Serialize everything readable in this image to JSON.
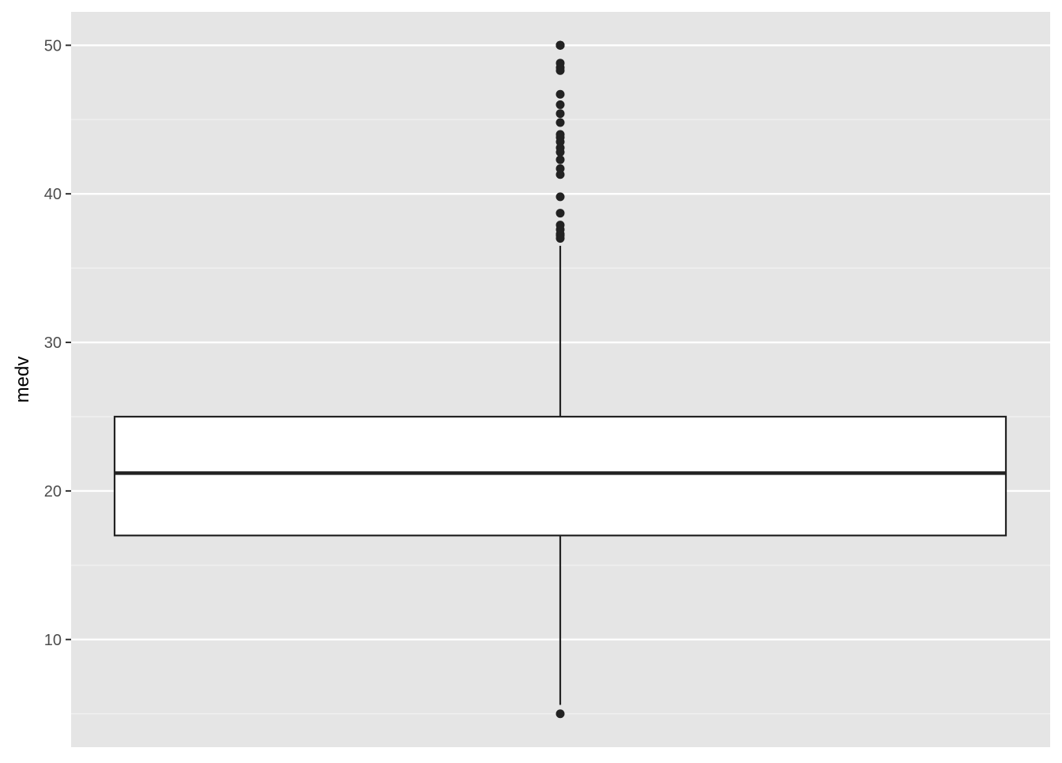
{
  "chart_data": {
    "type": "boxplot",
    "title": "",
    "xlabel": "",
    "ylabel": "medv",
    "ylim": [
      2.75,
      52.25
    ],
    "yticks": [
      10,
      20,
      30,
      40,
      50
    ],
    "yticklabels": [
      "10",
      "20",
      "30",
      "40",
      "50"
    ],
    "minor_yticks": [
      5,
      15,
      25,
      35,
      45
    ],
    "grid": true,
    "legend": "none",
    "box": {
      "q1": 17.0,
      "median": 21.2,
      "q3": 25.0,
      "whisker_low": 5.6,
      "whisker_high": 36.5
    },
    "outliers": [
      50,
      50,
      50,
      50,
      50,
      48.8,
      48.5,
      48.3,
      46.7,
      46.0,
      45.4,
      44.8,
      44.0,
      43.8,
      43.5,
      43.1,
      42.8,
      42.3,
      41.7,
      41.3,
      39.8,
      38.7,
      37.9,
      37.6,
      37.3,
      37.2,
      37.0,
      5.0
    ],
    "colors": {
      "panel_background": "#e5e5e5",
      "grid_major": "#ffffff",
      "grid_minor": "#f2f2f2",
      "box_fill": "#ffffff",
      "box_stroke": "#222222",
      "point": "#222222"
    }
  }
}
